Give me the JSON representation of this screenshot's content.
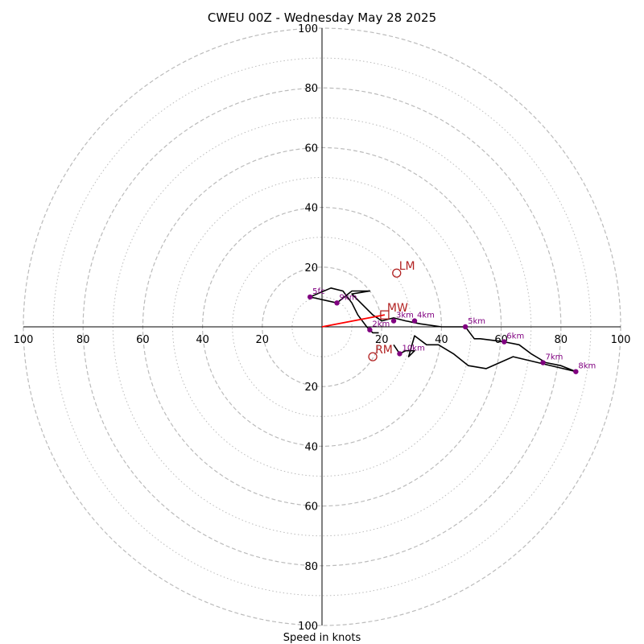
{
  "chart_data": {
    "type": "line",
    "title": "CWEU 00Z - Wednesday May 28 2025",
    "xlabel": "Speed in knots",
    "ylabel": "",
    "xlim": [
      -100,
      100
    ],
    "ylim": [
      -100,
      100
    ],
    "grid": true,
    "ring_major": [
      20,
      40,
      60,
      80,
      100
    ],
    "ring_minor": [
      10,
      30,
      50,
      70,
      90
    ],
    "x_tick_labels": [
      "100",
      "80",
      "60",
      "40",
      "20",
      "20",
      "40",
      "60",
      "80",
      "100"
    ],
    "y_tick_labels": [
      "100",
      "80",
      "60",
      "40",
      "20",
      "20",
      "40",
      "60",
      "80",
      "100"
    ],
    "colors": {
      "hodograph": "#000000",
      "height_marker": "#800080",
      "storm_motion": "#b22222",
      "shear_vector": "#ff0000",
      "grid": "#bbbbbb"
    },
    "hodograph": {
      "x": [
        19,
        17,
        15,
        12,
        10,
        7,
        3,
        -4,
        5,
        10,
        16,
        10,
        13,
        17,
        20,
        24,
        28,
        33,
        40,
        48,
        51,
        53,
        61,
        66,
        70,
        75,
        80,
        85,
        64,
        55,
        49,
        44,
        39,
        35,
        31,
        29,
        31,
        28,
        26,
        24
      ],
      "y": [
        -2,
        -2,
        0,
        4,
        8,
        12,
        13,
        10,
        8,
        12,
        12,
        11,
        8,
        4,
        2,
        3,
        2,
        1,
        0,
        0,
        -4,
        -4,
        -5,
        -6,
        -9,
        -12,
        -13,
        -15,
        -10,
        -14,
        -13,
        -9,
        -6,
        -6,
        -3,
        -10,
        -8,
        -8,
        -9,
        -6
      ]
    },
    "height_markers": [
      {
        "label": "2km",
        "x": 16,
        "y": -1
      },
      {
        "label": "3km",
        "x": 24,
        "y": 2
      },
      {
        "label": "4km",
        "x": 31,
        "y": 2
      },
      {
        "label": "5km",
        "x": 48,
        "y": 0
      },
      {
        "label": "6km",
        "x": 61,
        "y": -5
      },
      {
        "label": "7km",
        "x": 74,
        "y": -12
      },
      {
        "label": "8km",
        "x": 85,
        "y": -15
      },
      {
        "label": "9km",
        "x": 5,
        "y": 8
      },
      {
        "label": "5fc",
        "x": -4,
        "y": 10
      },
      {
        "label": "10km",
        "x": 26,
        "y": -9
      }
    ],
    "storm_motion": [
      {
        "label": "LM",
        "x": 25,
        "y": 18,
        "marker": "circle"
      },
      {
        "label": "MW",
        "x": 21,
        "y": 4,
        "marker": "square"
      },
      {
        "label": "RM",
        "x": 17,
        "y": -10,
        "marker": "circle"
      }
    ],
    "shear_vector": {
      "from": [
        0,
        0
      ],
      "to": [
        21,
        4
      ]
    }
  }
}
